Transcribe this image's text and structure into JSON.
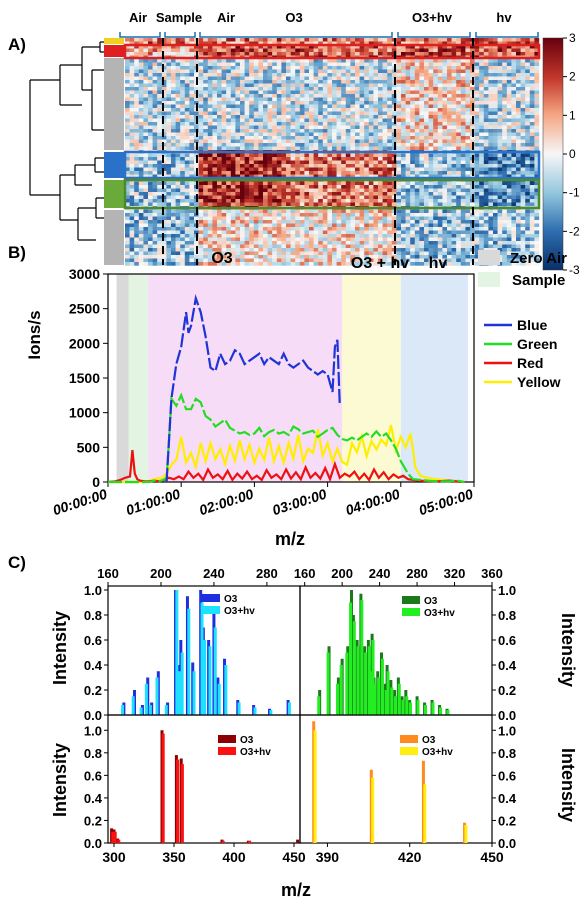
{
  "colors": {
    "blue": "#1f33d6",
    "green": "#22dd22",
    "red": "#ee1111",
    "yellow": "#ffee00",
    "heat_low": "#08306b",
    "heat_mid": "#f7f7f7",
    "heat_high": "#67000d",
    "zero_air_band": "#d9d9d9",
    "sample_band": "#e3f4e3",
    "o3_band": "#f6dcf6",
    "o3hv_band": "#fcfad2",
    "hv_band": "#dbe8f7",
    "cluster_blue": "#2a72c9",
    "cluster_green": "#4a8a2a",
    "cluster_red": "#e02020",
    "cluster_yellow": "#f0d020"
  },
  "panelA": {
    "label": "A)",
    "segments": [
      "Air",
      "Sample",
      "Air",
      "O3",
      "O3+hv",
      "hv"
    ],
    "colorbar_ticks": [
      "3",
      "2",
      "1",
      "0",
      "-1",
      "-2",
      "-3"
    ],
    "chart_data": {
      "type": "heatmap",
      "colorbar_range": [
        -3,
        3
      ],
      "highlighted_clusters": [
        "Red",
        "Blue",
        "Green"
      ],
      "row_groups": [
        "Yellow",
        "Red",
        "Gray",
        "Blue",
        "Green",
        "Gray"
      ]
    }
  },
  "panelB": {
    "label": "B)",
    "ylabel": "Ions/s",
    "xlabel": "m/z",
    "yticks": [
      "0",
      "500",
      "1000",
      "1500",
      "2000",
      "2500",
      "3000"
    ],
    "xticks": [
      "00:00:00",
      "01:00:00",
      "02:00:00",
      "03:00:00",
      "04:00:00",
      "05:00:00"
    ],
    "region_labels": {
      "o3": "O3",
      "o3hv": "O3 + hv",
      "hv": "hv"
    },
    "legend_bands": [
      "Zero Air",
      "Sample"
    ],
    "legend_lines": [
      "Blue",
      "Green",
      "Red",
      "Yellow"
    ],
    "chart_data": {
      "type": "line",
      "xlim_min": [
        0,
        300
      ],
      "ylim": [
        0,
        3000
      ],
      "regions": [
        {
          "name": "Zero Air",
          "x": [
            7,
            17
          ]
        },
        {
          "name": "Sample",
          "x": [
            17,
            33
          ]
        },
        {
          "name": "O3",
          "x": [
            33,
            192
          ]
        },
        {
          "name": "O3 + hv",
          "x": [
            192,
            240
          ]
        },
        {
          "name": "hv",
          "x": [
            240,
            295
          ]
        }
      ],
      "series": [
        {
          "name": "Blue",
          "x": [
            48,
            52,
            56,
            60,
            64,
            66,
            68,
            72,
            76,
            80,
            84,
            88,
            92,
            96,
            100,
            104,
            108,
            112,
            116,
            120,
            124,
            128,
            132,
            136,
            140,
            144,
            148,
            152,
            156,
            160,
            164,
            168,
            172,
            176,
            180,
            184,
            186,
            188,
            190
          ],
          "y": [
            0,
            1200,
            1700,
            1950,
            2450,
            2150,
            2250,
            2650,
            2450,
            2100,
            1650,
            1600,
            1850,
            1700,
            1750,
            1900,
            1850,
            1700,
            1750,
            1800,
            1850,
            1700,
            1800,
            1750,
            1700,
            1850,
            1700,
            1650,
            1700,
            1750,
            1650,
            1600,
            1550,
            1600,
            1550,
            1300,
            1950,
            2050,
            1100
          ]
        },
        {
          "name": "Green",
          "x": [
            0,
            6,
            10,
            14,
            18,
            22,
            26,
            30,
            34,
            38,
            40,
            44,
            48,
            50,
            52,
            56,
            60,
            64,
            68,
            72,
            76,
            80,
            84,
            88,
            92,
            96,
            100,
            104,
            108,
            112,
            116,
            120,
            124,
            128,
            132,
            136,
            140,
            144,
            148,
            152,
            156,
            160,
            164,
            168,
            172,
            176,
            180,
            184,
            188,
            192,
            196,
            200,
            204,
            208,
            212,
            216,
            220,
            224,
            228,
            232,
            236,
            240,
            246,
            250,
            256,
            262,
            268,
            274,
            280,
            286,
            292
          ],
          "y": [
            0,
            0,
            0,
            0,
            0,
            0,
            0,
            0,
            0,
            20,
            10,
            20,
            60,
            600,
            1200,
            1100,
            1250,
            1050,
            1050,
            1200,
            1150,
            950,
            900,
            800,
            850,
            900,
            780,
            740,
            700,
            720,
            680,
            700,
            780,
            660,
            720,
            750,
            700,
            720,
            680,
            800,
            760,
            700,
            720,
            740,
            650,
            700,
            750,
            780,
            680,
            620,
            600,
            640,
            600,
            650,
            700,
            650,
            730,
            650,
            700,
            600,
            480,
            300,
            120,
            40,
            30,
            20,
            10,
            10,
            10,
            20,
            0
          ]
        },
        {
          "name": "Red",
          "x": [
            0,
            6,
            10,
            14,
            18,
            20,
            22,
            24,
            26,
            30,
            34,
            38,
            42,
            46,
            50,
            54,
            58,
            62,
            66,
            70,
            74,
            78,
            82,
            86,
            90,
            94,
            98,
            102,
            106,
            110,
            114,
            118,
            122,
            126,
            130,
            134,
            138,
            142,
            146,
            150,
            154,
            158,
            162,
            166,
            170,
            174,
            178,
            182,
            186,
            190,
            194,
            198,
            202,
            206,
            210,
            214,
            218,
            222,
            226,
            230,
            234,
            238,
            242,
            246,
            250,
            256,
            262,
            270,
            280,
            290
          ],
          "y": [
            0,
            10,
            30,
            60,
            80,
            460,
            120,
            40,
            20,
            10,
            10,
            20,
            10,
            30,
            60,
            40,
            80,
            40,
            150,
            60,
            120,
            30,
            180,
            60,
            110,
            40,
            160,
            30,
            120,
            50,
            150,
            40,
            90,
            30,
            170,
            60,
            110,
            40,
            180,
            50,
            140,
            40,
            210,
            60,
            130,
            50,
            200,
            40,
            260,
            60,
            120,
            80,
            150,
            40,
            120,
            30,
            180,
            60,
            140,
            40,
            110,
            60,
            90,
            40,
            30,
            20,
            10,
            10,
            20,
            0
          ]
        },
        {
          "name": "Yellow",
          "x": [
            0,
            8,
            14,
            20,
            26,
            32,
            36,
            40,
            44,
            48,
            52,
            56,
            60,
            64,
            68,
            72,
            76,
            80,
            84,
            88,
            92,
            96,
            100,
            104,
            108,
            112,
            116,
            120,
            124,
            128,
            132,
            136,
            140,
            144,
            148,
            152,
            156,
            160,
            164,
            168,
            172,
            176,
            180,
            184,
            188,
            192,
            196,
            200,
            204,
            208,
            212,
            216,
            220,
            224,
            228,
            232,
            236,
            240,
            244,
            248,
            252,
            256,
            262,
            268,
            274,
            280,
            286,
            292
          ],
          "y": [
            0,
            0,
            0,
            0,
            0,
            0,
            30,
            50,
            60,
            120,
            250,
            320,
            650,
            280,
            420,
            220,
            560,
            300,
            560,
            330,
            470,
            260,
            520,
            310,
            600,
            330,
            540,
            280,
            480,
            320,
            640,
            300,
            520,
            280,
            560,
            340,
            680,
            300,
            480,
            420,
            760,
            380,
            560,
            300,
            480,
            290,
            250,
            560,
            430,
            660,
            370,
            590,
            470,
            610,
            530,
            820,
            460,
            650,
            500,
            700,
            210,
            90,
            60,
            40,
            30,
            20,
            10,
            0
          ]
        }
      ]
    }
  },
  "panelC": {
    "label": "C)",
    "xlabel": "m/z",
    "ylabel": "Intensity",
    "top_left": {
      "xticks": [
        "160",
        "200",
        "240",
        "280"
      ],
      "yticks": [
        "0.0",
        "0.2",
        "0.4",
        "0.6",
        "0.8",
        "1.0"
      ],
      "legend": [
        "O3",
        "O3+hv"
      ],
      "chart_data": {
        "type": "bar",
        "xlim": [
          160,
          305
        ],
        "ylim": [
          0,
          1.0
        ],
        "series": [
          {
            "name": "O3",
            "x": [
              172,
              180,
              186,
              190,
              193,
              198,
              205,
              211,
              213,
              215,
              220,
              224,
              230,
              232,
              236,
              240,
              243,
              248,
              258,
              270,
              282,
              296
            ],
            "y": [
              0.1,
              0.2,
              0.08,
              0.3,
              0.1,
              0.35,
              0.1,
              1.0,
              0.4,
              0.6,
              0.95,
              0.42,
              1.0,
              0.7,
              0.6,
              0.82,
              0.3,
              0.45,
              0.12,
              0.08,
              0.05,
              0.12
            ]
          },
          {
            "name": "O3+hv",
            "x": [
              171,
              179,
              185,
              189,
              192,
              197,
              204,
              212,
              214,
              216,
              221,
              225,
              231,
              233,
              237,
              241,
              244,
              249,
              259,
              271,
              283,
              297
            ],
            "y": [
              0.08,
              0.15,
              0.06,
              0.25,
              0.08,
              0.3,
              0.08,
              1.0,
              0.35,
              0.5,
              0.85,
              0.35,
              0.9,
              0.6,
              0.55,
              0.7,
              0.25,
              0.4,
              0.1,
              0.06,
              0.04,
              0.1
            ]
          }
        ]
      }
    },
    "top_right": {
      "xticks": [
        "160",
        "200",
        "240",
        "280",
        "320",
        "360"
      ],
      "yticks": [
        "0.0",
        "0.2",
        "0.4",
        "0.6",
        "0.8",
        "1.0"
      ],
      "legend": [
        "O3",
        "O3+hv"
      ],
      "chart_data": {
        "type": "bar",
        "xlim": [
          155,
          360
        ],
        "ylim": [
          0,
          1.0
        ],
        "series": [
          {
            "name": "O3",
            "x": [
              176,
              186,
              196,
              200,
              206,
              210,
              212,
              216,
              220,
              224,
              228,
              230,
              232,
              234,
              238,
              242,
              246,
              248,
              252,
              256,
              260,
              264,
              268,
              272,
              280,
              288,
              296,
              304,
              312
            ],
            "y": [
              0.2,
              0.55,
              0.3,
              0.45,
              0.55,
              1.0,
              0.8,
              0.6,
              0.97,
              0.55,
              0.6,
              0.4,
              0.65,
              0.3,
              0.35,
              0.5,
              0.25,
              0.4,
              0.28,
              0.2,
              0.3,
              0.15,
              0.2,
              0.12,
              0.15,
              0.1,
              0.12,
              0.08,
              0.05
            ]
          },
          {
            "name": "O3+hv",
            "x": [
              175,
              185,
              195,
              199,
              205,
              209,
              213,
              217,
              221,
              225,
              229,
              231,
              233,
              235,
              239,
              243,
              247,
              249,
              253,
              257,
              261,
              265,
              269,
              273,
              281,
              289,
              297,
              305,
              313
            ],
            "y": [
              0.15,
              0.5,
              0.25,
              0.4,
              0.5,
              0.9,
              0.75,
              0.55,
              0.92,
              0.5,
              0.55,
              0.35,
              0.6,
              0.25,
              0.3,
              0.45,
              0.2,
              0.35,
              0.22,
              0.15,
              0.25,
              0.12,
              0.15,
              0.1,
              0.12,
              0.08,
              0.1,
              0.06,
              0.04
            ]
          }
        ]
      }
    },
    "bottom_left": {
      "xticks": [
        "300",
        "350",
        "400",
        "450"
      ],
      "yticks": [
        "0.0",
        "0.2",
        "0.4",
        "0.6",
        "0.8",
        "1.0"
      ],
      "legend": [
        "O3",
        "O3+hv"
      ],
      "chart_data": {
        "type": "bar",
        "xlim": [
          295,
          455
        ],
        "ylim": [
          0,
          1.1
        ],
        "series": [
          {
            "name": "O3",
            "x": [
              298,
              300,
              303,
              340,
              352,
              356,
              390,
              412,
              453
            ],
            "y": [
              0.13,
              0.12,
              0.04,
              1.0,
              0.78,
              0.75,
              0.03,
              0.02,
              0.03
            ]
          },
          {
            "name": "O3+hv",
            "x": [
              299,
              301,
              304,
              341,
              353,
              357,
              391,
              413
            ],
            "y": [
              0.1,
              0.1,
              0.03,
              0.97,
              0.74,
              0.7,
              0.02,
              0.02
            ]
          }
        ]
      }
    },
    "bottom_right": {
      "xticks": [
        "390",
        "420",
        "450"
      ],
      "yticks": [
        "0.0",
        "0.2",
        "0.4",
        "0.6",
        "0.8",
        "1.0"
      ],
      "legend": [
        "O3",
        "O3+hv"
      ],
      "chart_data": {
        "type": "bar",
        "xlim": [
          380,
          450
        ],
        "ylim": [
          0,
          1.1
        ],
        "series": [
          {
            "name": "O3",
            "x": [
              385,
              406,
              425,
              440
            ],
            "y": [
              1.08,
              0.65,
              0.73,
              0.18
            ]
          },
          {
            "name": "O3+hv",
            "x": [
              385.5,
              406.5,
              425.5,
              440.5
            ],
            "y": [
              1.0,
              0.58,
              0.52,
              0.16
            ]
          }
        ]
      }
    }
  }
}
